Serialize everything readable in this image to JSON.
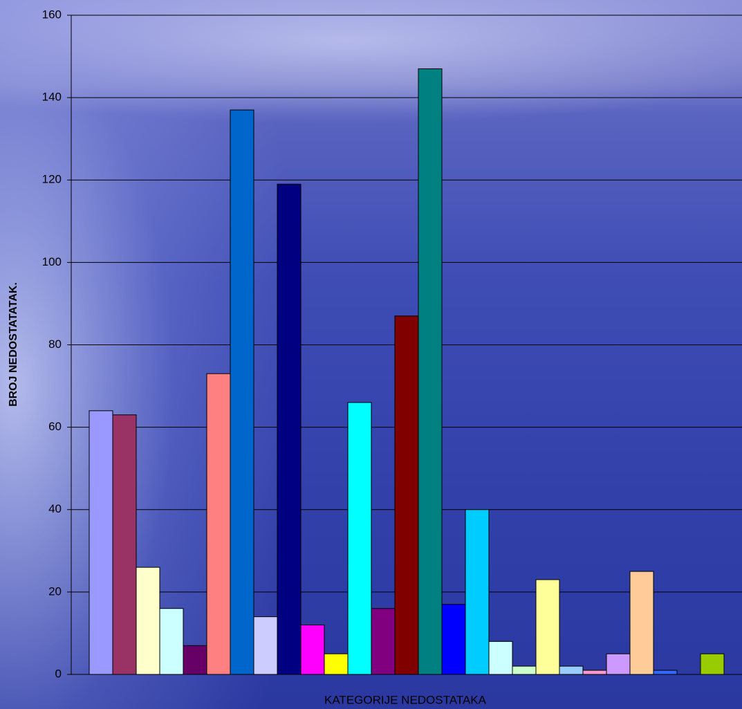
{
  "chart_data": {
    "type": "bar",
    "x_label": "KATEGORIJE NEDOSTATAKA",
    "y_label": "BROJ NEDOSTATATAK.",
    "values": [
      64,
      63,
      26,
      16,
      7,
      73,
      137,
      14,
      119,
      12,
      5,
      66,
      16,
      87,
      147,
      17,
      40,
      8,
      2,
      23,
      2,
      1,
      5,
      25,
      1,
      0,
      5
    ],
    "colors": [
      "#9999ff",
      "#993366",
      "#ffffcc",
      "#ccffff",
      "#660066",
      "#ff8080",
      "#0066cc",
      "#ccccff",
      "#000080",
      "#ff00ff",
      "#ffff00",
      "#00ffff",
      "#800080",
      "#800000",
      "#008080",
      "#0000ff",
      "#00ccff",
      "#ccffff",
      "#ccffcc",
      "#ffff99",
      "#99ccff",
      "#ff99cc",
      "#cc99ff",
      "#ffcc99",
      "#3366ff",
      "#33cccc",
      "#99cc00"
    ],
    "ylim": [
      0,
      160
    ],
    "yticks": [
      0,
      20,
      40,
      60,
      80,
      100,
      120,
      140,
      160
    ],
    "grid": true
  }
}
